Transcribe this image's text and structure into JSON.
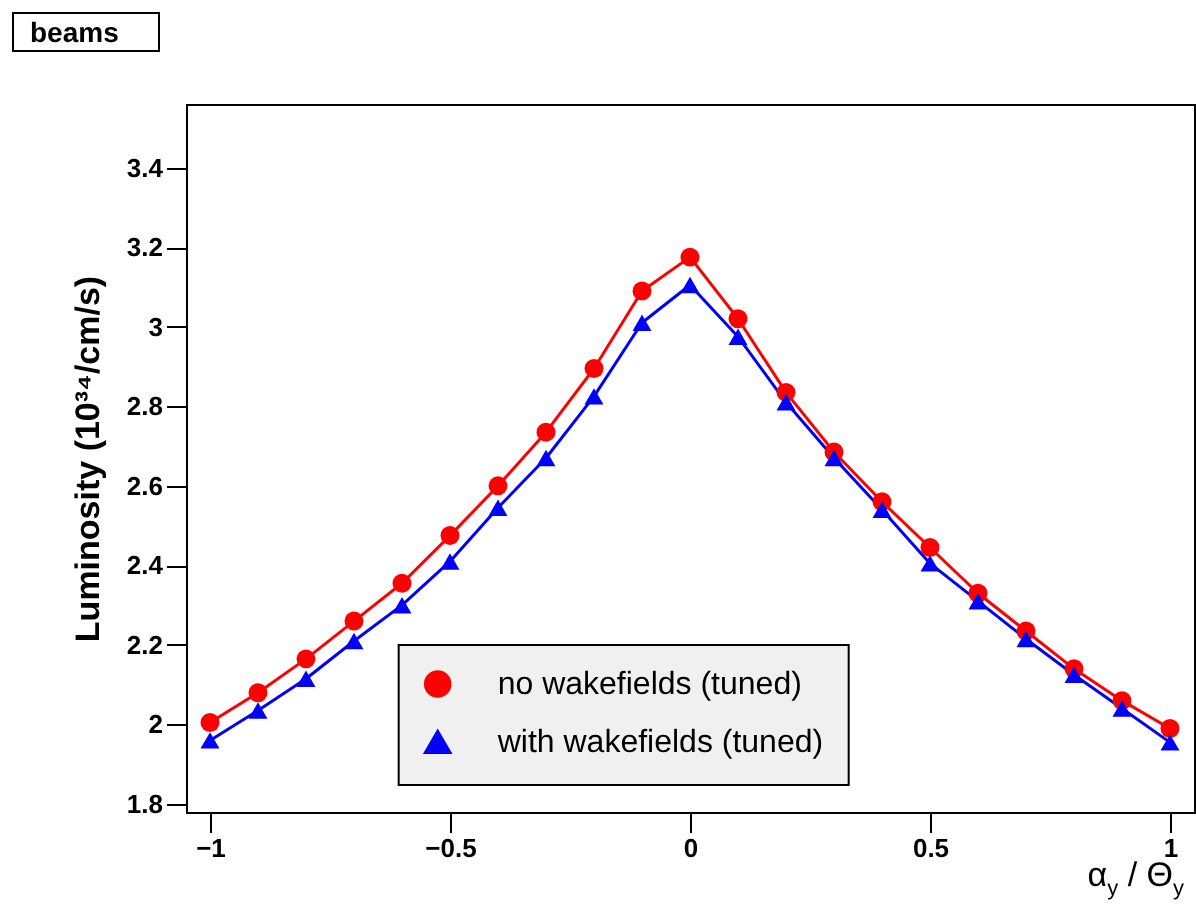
{
  "chart_data": {
    "type": "line",
    "title": "beams",
    "xlabel": "α$_{y}$ / Θ$_{y}$",
    "ylabel": "Luminosity (10³⁴/cm/s)",
    "x": [
      -1,
      -0.9,
      -0.8,
      -0.7,
      -0.6,
      -0.5,
      -0.4,
      -0.3,
      -0.2,
      -0.1,
      0,
      0.1,
      0.2,
      0.3,
      0.4,
      0.5,
      0.6,
      0.7,
      0.8,
      0.9,
      1
    ],
    "series": [
      {
        "name": "no wakefields (tuned)",
        "color": "#ff0000",
        "marker": "circle",
        "values": [
          2.005,
          2.08,
          2.165,
          2.26,
          2.355,
          2.475,
          2.6,
          2.735,
          2.895,
          3.09,
          3.175,
          3.02,
          2.835,
          2.685,
          2.56,
          2.445,
          2.33,
          2.235,
          2.14,
          2.06,
          1.99
        ]
      },
      {
        "name": "with wakefields (tuned)",
        "color": "#0000ff",
        "marker": "triangle",
        "values": [
          1.96,
          2.035,
          2.115,
          2.21,
          2.3,
          2.41,
          2.545,
          2.67,
          2.825,
          3.01,
          3.105,
          2.975,
          2.81,
          2.67,
          2.54,
          2.405,
          2.31,
          2.215,
          2.125,
          2.04,
          1.955
        ]
      }
    ],
    "xlim": [
      -1.05,
      1.05
    ],
    "xticks": [
      -1,
      -0.5,
      0,
      0.5,
      1
    ],
    "ylim": [
      1.78,
      3.56
    ],
    "yticks": [
      1.8,
      2,
      2.2,
      2.4,
      2.6,
      2.8,
      3,
      3.2,
      3.4
    ],
    "grid": false,
    "legend": "bottom"
  }
}
